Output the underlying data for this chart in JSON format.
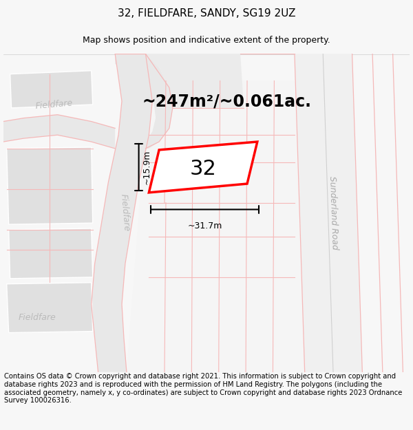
{
  "title": "32, FIELDFARE, SANDY, SG19 2UZ",
  "subtitle": "Map shows position and indicative extent of the property.",
  "area_text": "~247m²/~0.061ac.",
  "width_label": "~31.7m",
  "height_label": "~15.9m",
  "plot_number": "32",
  "street_name_fieldfare": "Fieldfare",
  "street_name_fieldfare2": "Fieldfare",
  "street_name_sunderland": "Sunderland Road",
  "copyright_text": "Contains OS data © Crown copyright and database right 2021. This information is subject to Crown copyright and database rights 2023 and is reproduced with the permission of HM Land Registry. The polygons (including the associated geometry, namely x, y co-ordinates) are subject to Crown copyright and database rights 2023 Ordnance Survey 100026316.",
  "bg_color": "#f7f7f7",
  "map_bg": "#ffffff",
  "pink": "#f5b8b8",
  "gray_road": "#e8e8e8",
  "building_fill": "#e0e0e0",
  "building_edge": "#ffffff",
  "sunderland_road_fill": "#f0f0f0",
  "plot_fill": "#ffffff",
  "plot_edge": "#ff0000",
  "title_fontsize": 11,
  "subtitle_fontsize": 9,
  "area_fontsize": 17,
  "label_fontsize": 9,
  "plot_label_fontsize": 22,
  "copyright_fontsize": 7.2,
  "street_label_fontsize": 9
}
